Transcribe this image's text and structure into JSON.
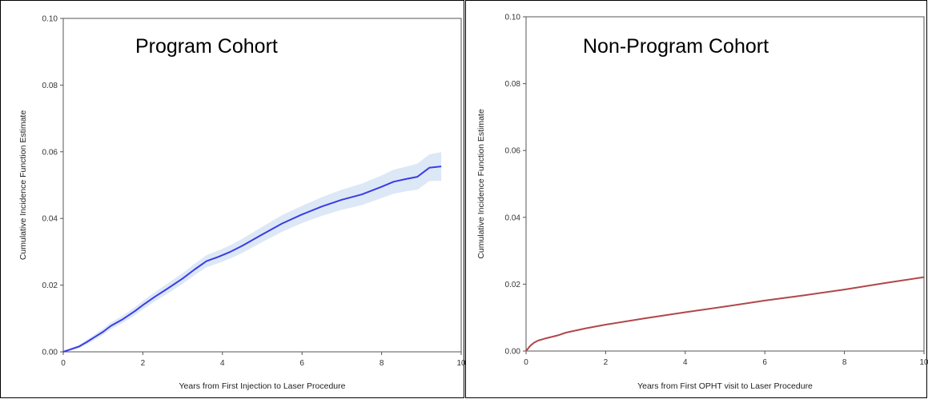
{
  "chart_data": [
    {
      "type": "line",
      "title": "Program Cohort",
      "xlabel": "Years from First Injection to Laser Procedure",
      "ylabel": "Cumulative Incidence Function Estimate",
      "xlim": [
        0,
        10
      ],
      "ylim": [
        0,
        0.1
      ],
      "xticks": [
        "0",
        "2",
        "4",
        "6",
        "8",
        "10"
      ],
      "yticks": [
        "0.00",
        "0.02",
        "0.04",
        "0.06",
        "0.08",
        "0.10"
      ],
      "grid": false,
      "confidence_band": true,
      "color": "#3c3ce6",
      "band_color": "#dce8f6",
      "series": [
        {
          "x": [
            0,
            0.2,
            0.4,
            0.6,
            0.8,
            1.0,
            1.2,
            1.5,
            1.8,
            2.0,
            2.3,
            2.6,
            3.0,
            3.3,
            3.6,
            3.9,
            4.2,
            4.5,
            5.0,
            5.5,
            6.0,
            6.5,
            7.0,
            7.5,
            8.0,
            8.3,
            8.6,
            8.9,
            9.2,
            9.5
          ],
          "y": [
            0,
            0.0008,
            0.0016,
            0.003,
            0.0045,
            0.006,
            0.0078,
            0.0098,
            0.0122,
            0.014,
            0.0165,
            0.0188,
            0.022,
            0.0247,
            0.0272,
            0.0285,
            0.03,
            0.0318,
            0.0352,
            0.0385,
            0.0412,
            0.0436,
            0.0456,
            0.0472,
            0.0495,
            0.051,
            0.0518,
            0.0525,
            0.0552,
            0.0556
          ],
          "lower": [
            0,
            0.0004,
            0.0011,
            0.0023,
            0.0037,
            0.0051,
            0.0068,
            0.0087,
            0.011,
            0.0127,
            0.0151,
            0.0173,
            0.0204,
            0.023,
            0.0254,
            0.0266,
            0.028,
            0.0297,
            0.0329,
            0.036,
            0.0386,
            0.0408,
            0.0426,
            0.044,
            0.0461,
            0.0474,
            0.0481,
            0.0486,
            0.0512,
            0.0513
          ],
          "upper": [
            0,
            0.0012,
            0.0021,
            0.0037,
            0.0053,
            0.0069,
            0.0088,
            0.0109,
            0.0134,
            0.0153,
            0.0179,
            0.0203,
            0.0236,
            0.0264,
            0.029,
            0.0304,
            0.032,
            0.0339,
            0.0375,
            0.041,
            0.0438,
            0.0464,
            0.0486,
            0.0504,
            0.0529,
            0.0546,
            0.0555,
            0.0564,
            0.0592,
            0.0599
          ]
        }
      ]
    },
    {
      "type": "line",
      "title": "Non-Program Cohort",
      "xlabel": "Years from First OPHT visit to Laser Procedure",
      "ylabel": "Cumulative Incidence Function Estimate",
      "xlim": [
        0,
        10
      ],
      "ylim": [
        0,
        0.1
      ],
      "xticks": [
        "0",
        "2",
        "4",
        "6",
        "8",
        "10"
      ],
      "yticks": [
        "0.00",
        "0.02",
        "0.04",
        "0.06",
        "0.08",
        "0.10"
      ],
      "grid": false,
      "confidence_band": false,
      "color": "#b0474a",
      "series": [
        {
          "x": [
            0,
            0.1,
            0.2,
            0.3,
            0.5,
            0.8,
            1.0,
            1.5,
            2.0,
            3.0,
            4.0,
            5.0,
            6.0,
            7.0,
            8.0,
            9.0,
            10.0
          ],
          "y": [
            0,
            0.0015,
            0.0025,
            0.0031,
            0.0038,
            0.0047,
            0.0055,
            0.0068,
            0.0079,
            0.0098,
            0.0116,
            0.0133,
            0.0151,
            0.0167,
            0.0184,
            0.0203,
            0.0221
          ]
        }
      ]
    }
  ]
}
